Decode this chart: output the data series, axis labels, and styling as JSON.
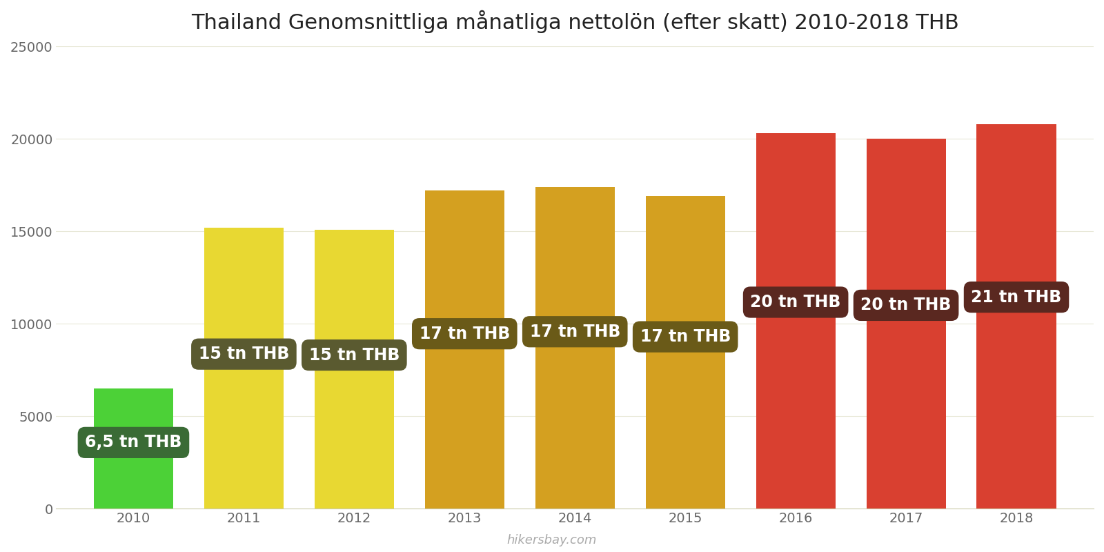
{
  "years": [
    2010,
    2011,
    2012,
    2013,
    2014,
    2015,
    2016,
    2017,
    2018
  ],
  "values": [
    6500,
    15200,
    15100,
    17200,
    17400,
    16900,
    20300,
    20000,
    20800
  ],
  "bar_colors": [
    "#4cd137",
    "#e8d832",
    "#e8d832",
    "#d4a020",
    "#d4a020",
    "#d4a020",
    "#d94030",
    "#d94030",
    "#d94030"
  ],
  "labels": [
    "6,5 tn THB",
    "15 tn THB",
    "15 tn THB",
    "17 tn THB",
    "17 tn THB",
    "17 tn THB",
    "20 tn THB",
    "20 tn THB",
    "21 tn THB"
  ],
  "label_bg_colors": [
    "#3a6b35",
    "#5a5a30",
    "#5a5a30",
    "#6a5a18",
    "#6a5a18",
    "#6a5a18",
    "#5a2820",
    "#5a2820",
    "#5a2820"
  ],
  "title": "Thailand Genomsnittliga månatliga nettolön (efter skatt) 2010-2018 THB",
  "ylim": [
    0,
    25000
  ],
  "yticks": [
    0,
    5000,
    10000,
    15000,
    20000,
    25000
  ],
  "watermark": "hikersbay.com",
  "background_color": "#ffffff",
  "label_text_color": "#ffffff",
  "label_fontsize": 17,
  "title_fontsize": 22,
  "bar_width": 0.72
}
